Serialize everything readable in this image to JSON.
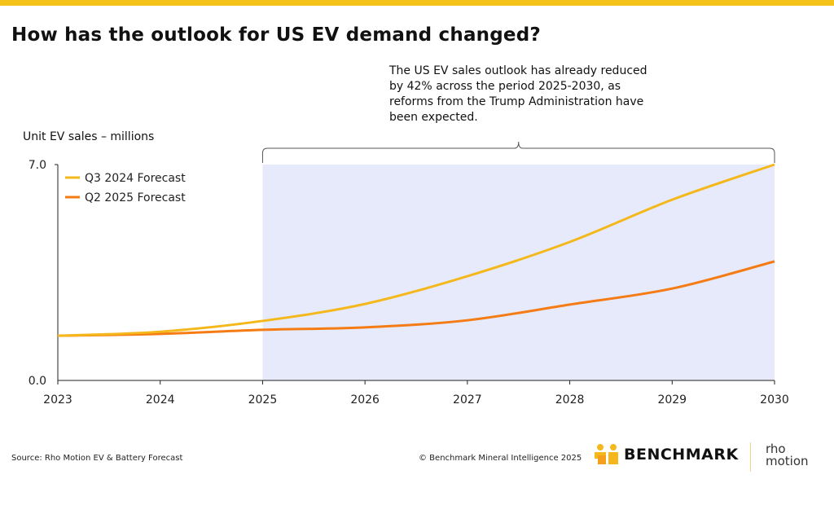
{
  "title": "How has the outlook for US EV demand changed?",
  "annotation": "The US EV sales outlook has already reduced by 42% across the period 2025-2030, as reforms from the Trump Administration have been expected.",
  "source": "Source: Rho Motion EV & Battery Forecast",
  "copyright": "© Benchmark Mineral Intelligence 2025",
  "logos": {
    "benchmark": "BENCHMARK",
    "rho_motion_1": "rho",
    "rho_motion_2": "motion"
  },
  "colors": {
    "q3_2024": "#f5b81c",
    "q2_2025": "#f57c14",
    "shade": "#e6eafb",
    "topbar": "#f5c21a"
  },
  "chart_data": {
    "type": "line",
    "title": "How has the outlook for US EV demand changed?",
    "ylabel": "Unit EV sales – millions",
    "xlabel": "",
    "ylim": [
      0,
      7
    ],
    "ytick_labels": [
      "0.0",
      "7.0"
    ],
    "yticks": [
      0,
      7
    ],
    "x": [
      2023,
      2024,
      2025,
      2026,
      2027,
      2028,
      2029,
      2030
    ],
    "xtick_labels": [
      "2023",
      "2024",
      "2025",
      "2026",
      "2027",
      "2028",
      "2029",
      "2030"
    ],
    "shaded_range": [
      2025,
      2030
    ],
    "legend_position": "top-left",
    "series": [
      {
        "name": "Q3 2024 Forecast",
        "values": [
          1.45,
          1.58,
          1.93,
          2.48,
          3.38,
          4.49,
          5.86,
          7.0
        ]
      },
      {
        "name": "Q2 2025 Forecast",
        "values": [
          1.45,
          1.51,
          1.64,
          1.72,
          1.95,
          2.46,
          2.98,
          3.86
        ]
      }
    ]
  }
}
